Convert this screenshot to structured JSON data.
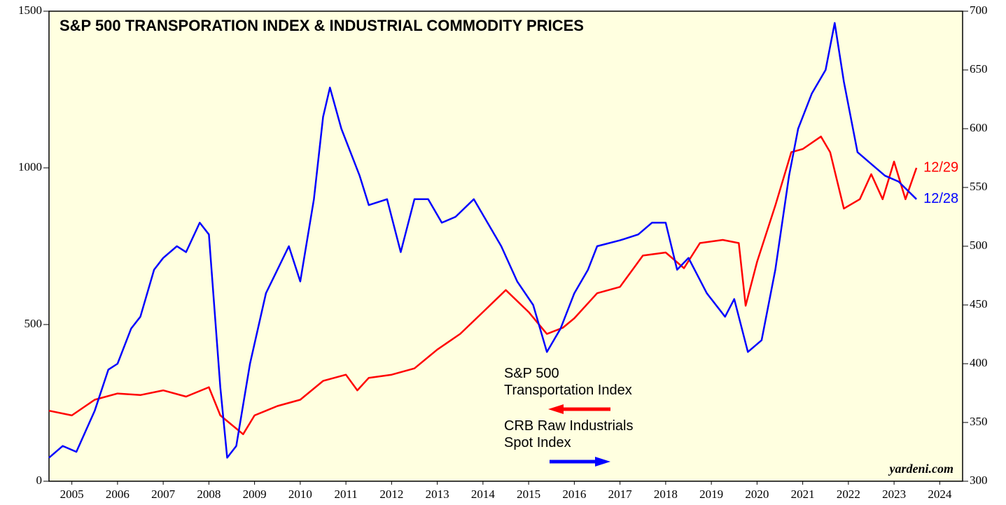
{
  "chart_data": {
    "type": "line",
    "title": "S&P 500 TRANSPORATION INDEX & INDUSTRIAL COMMODITY PRICES",
    "source": "yardeni.com",
    "xlim": [
      2005,
      2025
    ],
    "xticks": [
      {
        "value": 2005.5,
        "label": "2005"
      },
      {
        "value": 2006.5,
        "label": "2006"
      },
      {
        "value": 2007.5,
        "label": "2007"
      },
      {
        "value": 2008.5,
        "label": "2008"
      },
      {
        "value": 2009.5,
        "label": "2009"
      },
      {
        "value": 2010.5,
        "label": "2010"
      },
      {
        "value": 2011.5,
        "label": "2011"
      },
      {
        "value": 2012.5,
        "label": "2012"
      },
      {
        "value": 2013.5,
        "label": "2013"
      },
      {
        "value": 2014.5,
        "label": "2014"
      },
      {
        "value": 2015.5,
        "label": "2015"
      },
      {
        "value": 2016.5,
        "label": "2016"
      },
      {
        "value": 2017.5,
        "label": "2017"
      },
      {
        "value": 2018.5,
        "label": "2018"
      },
      {
        "value": 2019.5,
        "label": "2019"
      },
      {
        "value": 2020.5,
        "label": "2020"
      },
      {
        "value": 2021.5,
        "label": "2021"
      },
      {
        "value": 2022.5,
        "label": "2022"
      },
      {
        "value": 2023.5,
        "label": "2023"
      },
      {
        "value": 2024.5,
        "label": "2024"
      }
    ],
    "ylim": [
      0,
      1500
    ],
    "yticks": [
      0,
      500,
      1000,
      1500
    ],
    "y2lim": [
      300,
      700
    ],
    "y2ticks": [
      300,
      350,
      400,
      450,
      500,
      550,
      600,
      650,
      700
    ],
    "series": [
      {
        "name": "S&P 500\nTransportation Index",
        "color": "#ff0000",
        "axis": "y",
        "end_label": "12/29",
        "x": [
          2005.0,
          2005.5,
          2006.0,
          2006.5,
          2007.0,
          2007.5,
          2008.0,
          2008.5,
          2008.75,
          2009.0,
          2009.25,
          2009.5,
          2010.0,
          2010.5,
          2011.0,
          2011.5,
          2011.75,
          2012.0,
          2012.5,
          2013.0,
          2013.5,
          2014.0,
          2014.5,
          2015.0,
          2015.5,
          2015.9,
          2016.25,
          2016.5,
          2017.0,
          2017.5,
          2018.0,
          2018.5,
          2018.9,
          2019.25,
          2019.75,
          2020.1,
          2020.25,
          2020.5,
          2020.9,
          2021.25,
          2021.5,
          2021.9,
          2022.1,
          2022.4,
          2022.75,
          2023.0,
          2023.25,
          2023.5,
          2023.75,
          2023.99
        ],
        "values": [
          225,
          210,
          260,
          280,
          275,
          290,
          270,
          300,
          210,
          180,
          150,
          210,
          240,
          260,
          320,
          340,
          290,
          330,
          340,
          360,
          420,
          470,
          540,
          610,
          540,
          470,
          490,
          520,
          600,
          620,
          720,
          730,
          680,
          760,
          770,
          760,
          560,
          700,
          880,
          1050,
          1060,
          1100,
          1050,
          870,
          900,
          980,
          900,
          1020,
          900,
          1000
        ]
      },
      {
        "name": "CRB Raw Industrials\nSpot Index",
        "color": "#0000ff",
        "axis": "y2",
        "end_label": "12/28",
        "x": [
          2005.0,
          2005.3,
          2005.6,
          2006.0,
          2006.3,
          2006.5,
          2006.8,
          2007.0,
          2007.3,
          2007.5,
          2007.8,
          2008.0,
          2008.3,
          2008.5,
          2008.75,
          2008.9,
          2009.1,
          2009.4,
          2009.75,
          2010.0,
          2010.25,
          2010.5,
          2010.8,
          2011.0,
          2011.15,
          2011.4,
          2011.8,
          2012.0,
          2012.4,
          2012.7,
          2013.0,
          2013.3,
          2013.6,
          2013.9,
          2014.3,
          2014.6,
          2014.9,
          2015.25,
          2015.6,
          2015.9,
          2016.2,
          2016.5,
          2016.8,
          2017.0,
          2017.5,
          2017.9,
          2018.2,
          2018.5,
          2018.75,
          2019.0,
          2019.4,
          2019.8,
          2020.0,
          2020.3,
          2020.6,
          2020.9,
          2021.2,
          2021.4,
          2021.7,
          2022.0,
          2022.2,
          2022.4,
          2022.7,
          2023.0,
          2023.3,
          2023.6,
          2023.99
        ],
        "values": [
          320,
          330,
          325,
          360,
          395,
          400,
          430,
          440,
          480,
          490,
          500,
          495,
          520,
          510,
          380,
          320,
          330,
          400,
          460,
          480,
          500,
          470,
          540,
          610,
          635,
          600,
          560,
          535,
          540,
          495,
          540,
          540,
          520,
          525,
          540,
          520,
          500,
          470,
          450,
          410,
          430,
          460,
          480,
          500,
          505,
          510,
          520,
          520,
          480,
          490,
          460,
          440,
          455,
          410,
          420,
          480,
          560,
          600,
          630,
          650,
          690,
          640,
          580,
          570,
          560,
          555,
          540
        ]
      }
    ]
  }
}
